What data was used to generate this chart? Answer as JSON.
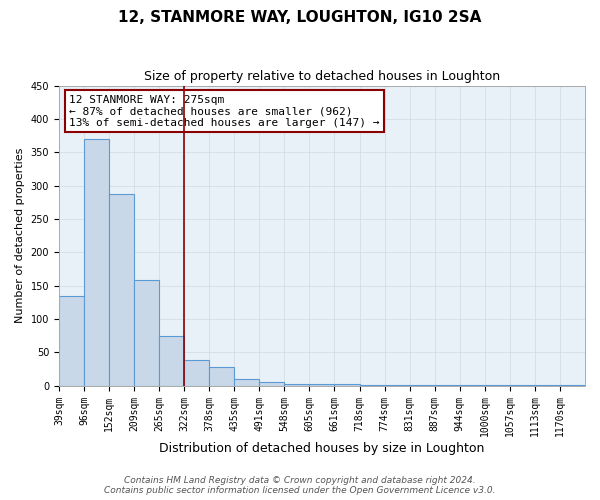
{
  "title": "12, STANMORE WAY, LOUGHTON, IG10 2SA",
  "subtitle": "Size of property relative to detached houses in Loughton",
  "xlabel": "Distribution of detached houses by size in Loughton",
  "ylabel": "Number of detached properties",
  "bin_labels": [
    "39sqm",
    "96sqm",
    "152sqm",
    "209sqm",
    "265sqm",
    "322sqm",
    "378sqm",
    "435sqm",
    "491sqm",
    "548sqm",
    "605sqm",
    "661sqm",
    "718sqm",
    "774sqm",
    "831sqm",
    "887sqm",
    "944sqm",
    "1000sqm",
    "1057sqm",
    "1113sqm",
    "1170sqm"
  ],
  "bar_heights": [
    135,
    370,
    288,
    158,
    75,
    38,
    28,
    10,
    5,
    2,
    2,
    2,
    1,
    1,
    1,
    1,
    1,
    1,
    1,
    1,
    1
  ],
  "bar_color": "#c8d8e8",
  "bar_edge_color": "#5b9bd5",
  "grid_color": "#d0d8e0",
  "background_color": "#e8f0f8",
  "red_line_bar_index": 5,
  "annotation_line1": "12 STANMORE WAY: 275sqm",
  "annotation_line2": "← 87% of detached houses are smaller (962)",
  "annotation_line3": "13% of semi-detached houses are larger (147) →",
  "footer_line1": "Contains HM Land Registry data © Crown copyright and database right 2024.",
  "footer_line2": "Contains public sector information licensed under the Open Government Licence v3.0.",
  "ylim": [
    0,
    450
  ],
  "yticks": [
    0,
    50,
    100,
    150,
    200,
    250,
    300,
    350,
    400,
    450
  ],
  "title_fontsize": 11,
  "subtitle_fontsize": 9,
  "xlabel_fontsize": 9,
  "ylabel_fontsize": 8,
  "tick_fontsize": 7,
  "annotation_fontsize": 8,
  "footer_fontsize": 6.5
}
